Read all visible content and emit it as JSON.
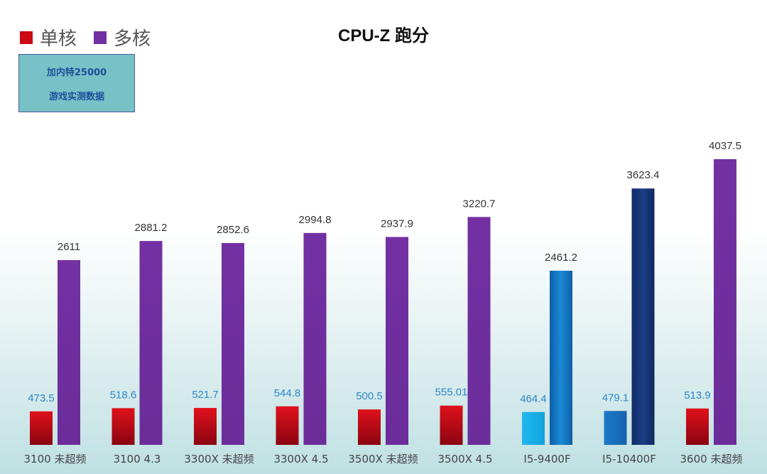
{
  "chart_data": {
    "type": "bar",
    "title": "CPU-Z 跑分",
    "categories": [
      "3100 未超频",
      "3100 4.3",
      "3300X 未超频",
      "3300X 4.5",
      "3500X 未超频",
      "3500X 4.5",
      "I5-9400F",
      "I5-10400F",
      "3600 未超频"
    ],
    "series": [
      {
        "name": "单核",
        "values": [
          473.5,
          518.6,
          521.7,
          544.8,
          500.5,
          555.01,
          464.4,
          479.1,
          513.9
        ],
        "labels": [
          "473.5",
          "518.6",
          "521.7",
          "544.8",
          "500.5",
          "555.01",
          "464.4",
          "479.1",
          "513.9"
        ]
      },
      {
        "name": "多核",
        "values": [
          2611,
          2881.2,
          2852.6,
          2994.8,
          2937.9,
          3220.7,
          2461.2,
          3623.4,
          4037.5
        ],
        "labels": [
          "2611",
          "2881.2",
          "2852.6",
          "2994.8",
          "2937.9",
          "3220.7",
          "2461.2",
          "3623.4",
          "4037.5"
        ]
      }
    ],
    "ylim": [
      0,
      4400
    ],
    "xlabel": "",
    "ylabel": "",
    "grid": false,
    "legend": "top-left"
  },
  "note": {
    "lines": [
      "加内特25000",
      "游戏实测数据"
    ]
  },
  "colors": {
    "single": "#cc0a14",
    "multi": "#7030a0",
    "single_intel_9400": "#1fb2ea",
    "single_intel_10400": "#1a70c0",
    "multi_intel_9400": "#1a86d0",
    "multi_intel_10400": "#14306e",
    "value_single_label": "#2e86c8",
    "value_multi_label": "#333333"
  }
}
